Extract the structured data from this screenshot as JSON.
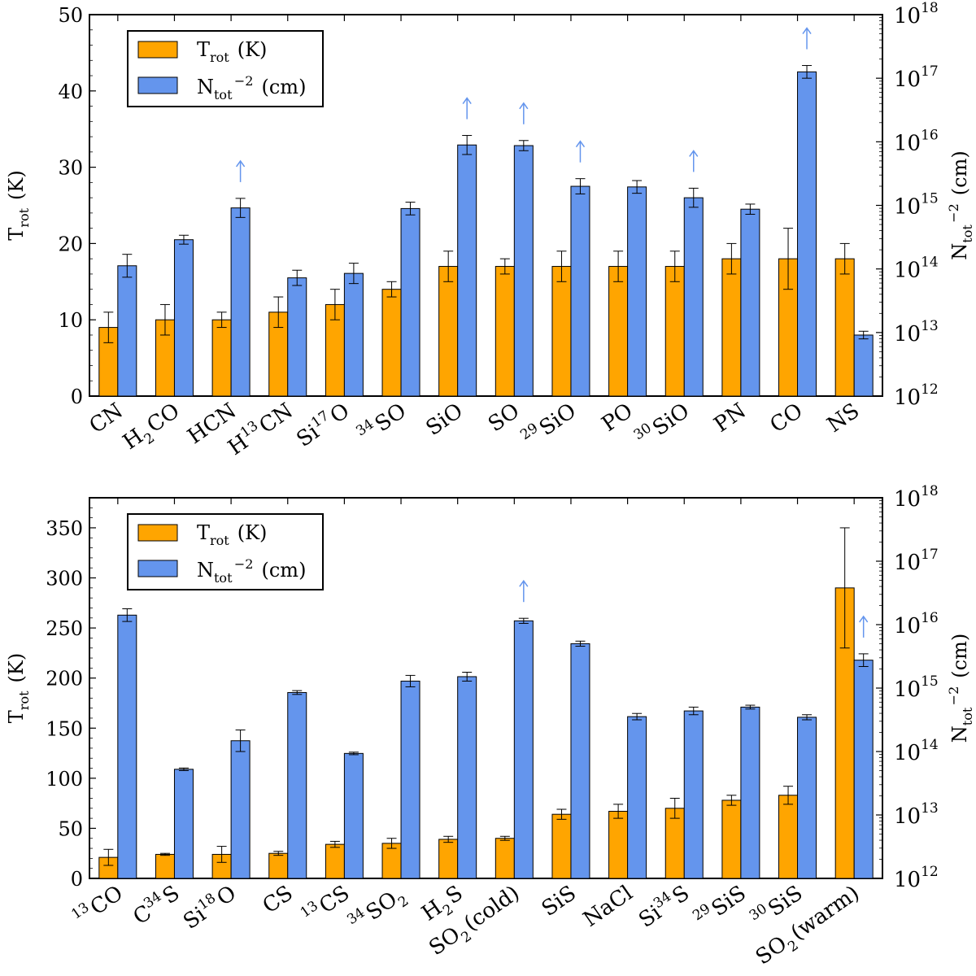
{
  "colors": {
    "trot": "#ffa500",
    "ntot": "#6495ed",
    "arrow": "#6495ed"
  },
  "chart_data": [
    {
      "type": "bar",
      "panel": "top",
      "categories": [
        {
          "base": "CN"
        },
        {
          "base": "H",
          "sub": "2",
          "post": "CO"
        },
        {
          "base": "HCN"
        },
        {
          "base": "H",
          "sup": "13",
          "post": "CN"
        },
        {
          "base": "Si",
          "sup": "17",
          "post": "O"
        },
        {
          "pre": "34",
          "base": "SO"
        },
        {
          "base": "SiO"
        },
        {
          "base": "SO"
        },
        {
          "pre": "29",
          "base": "SiO"
        },
        {
          "base": "PO"
        },
        {
          "pre": "30",
          "base": "SiO"
        },
        {
          "base": "PN"
        },
        {
          "base": "CO"
        },
        {
          "base": "NS"
        }
      ],
      "series": [
        {
          "name": "T_rot (K)",
          "axis": "left",
          "values": [
            9,
            10,
            10,
            11,
            12,
            14,
            17,
            17,
            17,
            17,
            17,
            18,
            18,
            18
          ],
          "err": [
            2,
            2,
            1,
            2,
            2,
            1,
            2,
            1,
            2,
            2,
            2,
            2,
            4,
            2
          ]
        },
        {
          "name": "N_tot (cm^-2)",
          "axis": "right",
          "scale": "log",
          "log10_values": [
            14.05,
            14.46,
            14.96,
            13.86,
            13.93,
            14.95,
            15.95,
            15.94,
            15.3,
            15.29,
            15.12,
            14.94,
            17.1,
            12.96
          ],
          "log10_err": [
            0.18,
            0.07,
            0.15,
            0.12,
            0.16,
            0.1,
            0.15,
            0.08,
            0.12,
            0.1,
            0.15,
            0.08,
            0.1,
            0.06
          ]
        }
      ],
      "lower_limits": [
        2,
        6,
        7,
        8,
        10,
        12
      ],
      "legend": {
        "placement": "top-left",
        "labels": [
          {
            "base": "T",
            "sub": "rot",
            "post": " (K)"
          },
          {
            "base": "N",
            "sub": "tot",
            "post": " (cm",
            "sup": "−2",
            "post2": ")"
          }
        ]
      },
      "ylabel_left": {
        "base": "T",
        "sub": "rot",
        "post": " (K)"
      },
      "ylabel_right": {
        "base": "N",
        "sub": "tot",
        "post": " (cm",
        "sup": "−2",
        "post2": ")"
      },
      "ylim_left": [
        0,
        50
      ],
      "ylim_right_log10": [
        12,
        18
      ],
      "yticks_left": [
        "0",
        "10",
        "20",
        "30",
        "40",
        "50"
      ],
      "yticks_right": [
        "12",
        "13",
        "14",
        "15",
        "16",
        "17",
        "18"
      ]
    },
    {
      "type": "bar",
      "panel": "bottom",
      "categories": [
        {
          "pre": "13",
          "base": "CO"
        },
        {
          "base": "C",
          "sup": "34",
          "post": "S"
        },
        {
          "base": "Si",
          "sup": "18",
          "post": "O"
        },
        {
          "base": "CS"
        },
        {
          "pre": "13",
          "base": "CS"
        },
        {
          "pre": "34",
          "base": "SO",
          "sub": "2"
        },
        {
          "base": "H",
          "sub": "2",
          "post": "S"
        },
        {
          "base": "SO",
          "sub": "2",
          "post": "(cold)"
        },
        {
          "base": "SiS"
        },
        {
          "base": "NaCl"
        },
        {
          "base": "Si",
          "sup": "34",
          "post": "S"
        },
        {
          "pre": "29",
          "base": "SiS"
        },
        {
          "pre": "30",
          "base": "SiS"
        },
        {
          "base": "SO",
          "sub": "2",
          "post": "(warm)"
        }
      ],
      "series": [
        {
          "name": "T_rot (K)",
          "axis": "left",
          "values": [
            21,
            24,
            24,
            25,
            34,
            35,
            39,
            40,
            64,
            67,
            70,
            78,
            83,
            290
          ],
          "err": [
            8,
            1,
            8,
            2,
            3,
            5,
            3,
            2,
            5,
            7,
            10,
            5,
            9,
            60
          ]
        },
        {
          "name": "N_tot (cm^-2)",
          "axis": "right",
          "scale": "log",
          "log10_values": [
            16.15,
            13.72,
            14.17,
            14.93,
            13.97,
            15.11,
            15.18,
            16.06,
            15.7,
            14.55,
            14.64,
            14.7,
            14.54,
            15.44
          ],
          "log10_err": [
            0.1,
            0.02,
            0.17,
            0.03,
            0.02,
            0.09,
            0.07,
            0.04,
            0.04,
            0.05,
            0.06,
            0.03,
            0.04,
            0.1
          ]
        }
      ],
      "lower_limits": [
        7,
        13
      ],
      "legend": {
        "placement": "top-left",
        "labels": [
          {
            "base": "T",
            "sub": "rot",
            "post": " (K)"
          },
          {
            "base": "N",
            "sub": "tot",
            "post": " (cm",
            "sup": "−2",
            "post2": ")"
          }
        ]
      },
      "ylabel_left": {
        "base": "T",
        "sub": "rot",
        "post": " (K)"
      },
      "ylabel_right": {
        "base": "N",
        "sub": "tot",
        "post": " (cm",
        "sup": "−2",
        "post2": ")"
      },
      "ylim_left": [
        0,
        380
      ],
      "ylim_right_log10": [
        12,
        18
      ],
      "yticks_left": [
        "0",
        "50",
        "100",
        "150",
        "200",
        "250",
        "300",
        "350"
      ],
      "yticks_right": [
        "12",
        "13",
        "14",
        "15",
        "16",
        "17",
        "18"
      ]
    }
  ]
}
